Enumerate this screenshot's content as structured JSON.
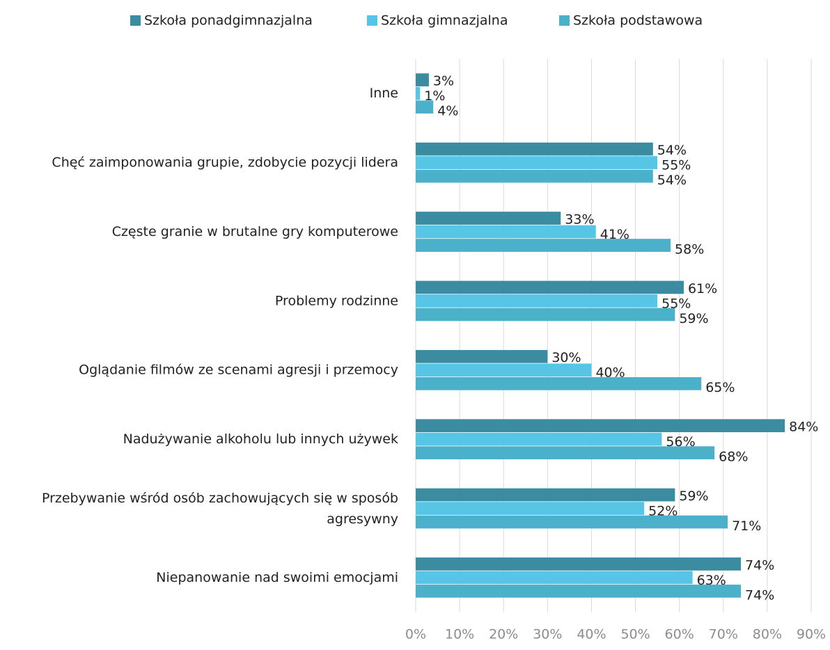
{
  "chart_data": {
    "type": "bar",
    "orientation": "horizontal",
    "categories": [
      "Inne",
      "Chęć zaimponowania grupie, zdobycie pozycji lidera",
      "Częste granie w brutalne gry komputerowe",
      "Problemy rodzinne",
      "Oglądanie filmów ze scenami agresji i przemocy",
      "Nadużywanie alkoholu lub innych używek",
      "Przebywanie wśród osób zachowujących się w sposób agresywny",
      "Niepanowanie nad swoimi emocjami"
    ],
    "series": [
      {
        "name": "Szkoła ponadgimnazjalna",
        "color": "#3b8ba1",
        "values": [
          3,
          54,
          33,
          61,
          30,
          84,
          59,
          74
        ],
        "value_labels": [
          "3%",
          "54%",
          "33%",
          "61%",
          "30%",
          "84%",
          "59%",
          "74%"
        ]
      },
      {
        "name": "Szkoła gimnazjalna",
        "color": "#57c6e6",
        "values": [
          1,
          55,
          41,
          55,
          40,
          56,
          52,
          63
        ],
        "value_labels": [
          "1%",
          "55%",
          "41%",
          "55%",
          "40%",
          "56%",
          "52%",
          "63%"
        ]
      },
      {
        "name": "Szkoła podstawowa",
        "color": "#4bb0c9",
        "values": [
          4,
          54,
          58,
          59,
          65,
          68,
          71,
          74
        ],
        "value_labels": [
          "4%",
          "54%",
          "58%",
          "59%",
          "65%",
          "68%",
          "71%",
          "74%"
        ]
      }
    ],
    "xlim": [
      0,
      90
    ],
    "xticks": [
      {
        "value": 0,
        "label": "0%"
      },
      {
        "value": 10,
        "label": "10%"
      },
      {
        "value": 20,
        "label": "20%"
      },
      {
        "value": 30,
        "label": "30%"
      },
      {
        "value": 40,
        "label": "40%"
      },
      {
        "value": 50,
        "label": "50%"
      },
      {
        "value": 60,
        "label": "60%"
      },
      {
        "value": 70,
        "label": "70%"
      },
      {
        "value": 80,
        "label": "80%"
      },
      {
        "value": 90,
        "label": "90%"
      }
    ],
    "grid": true,
    "legend": "top"
  }
}
